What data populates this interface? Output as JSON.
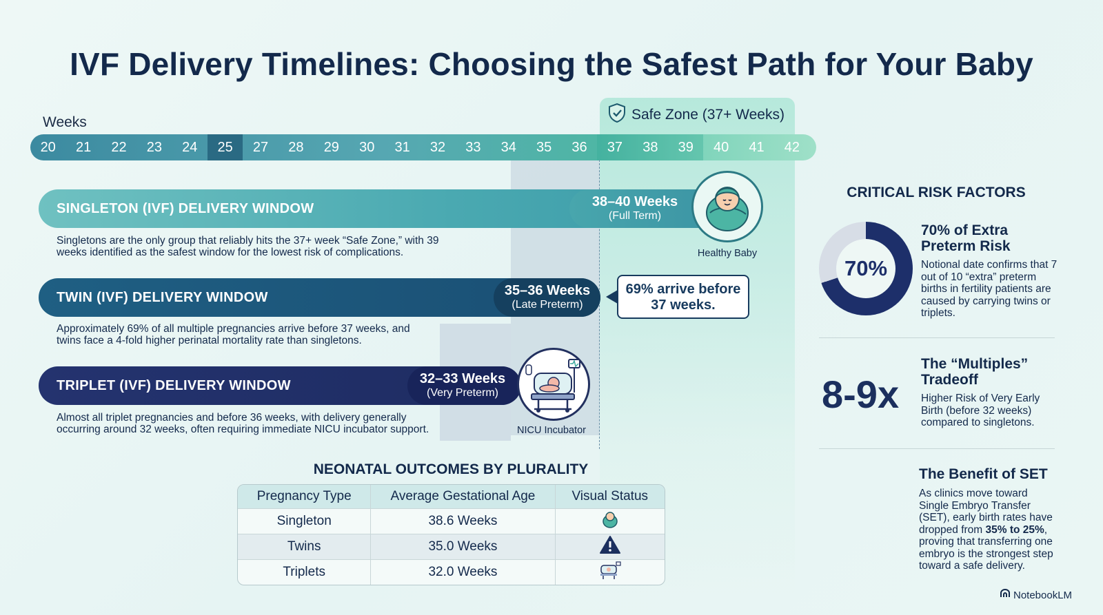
{
  "title": "IVF Delivery Timelines: Choosing the Safest Path for Your Baby",
  "timeline": {
    "label": "Weeks",
    "weeks": [
      "20",
      "21",
      "22",
      "23",
      "24",
      "25",
      "27",
      "28",
      "29",
      "30",
      "31",
      "32",
      "33",
      "34",
      "35",
      "36",
      "37",
      "38",
      "39",
      "40",
      "41",
      "42"
    ],
    "highlighted_week": "25",
    "safe_zone_label": "Safe Zone (37+ Weeks)"
  },
  "windows": [
    {
      "label": "SINGLETON (IVF) DELIVERY WINDOW",
      "weeks": "38–40 Weeks",
      "status": "(Full Term)",
      "description": "Singletons are the only group that reliably hits the 37+ week “Safe Zone,” with 39 weeks identified as the safest window for the lowest risk of complications.",
      "icon_caption": "Healthy Baby"
    },
    {
      "label": "TWIN (IVF) DELIVERY WINDOW",
      "weeks": "35–36 Weeks",
      "status": "(Late Preterm)",
      "description": "Approximately 69% of all multiple pregnancies arrive before 37 weeks, and twins face a 4-fold higher perinatal mortality rate than singletons.",
      "callout": "69% arrive before 37 weeks."
    },
    {
      "label": "TRIPLET (IVF) DELIVERY WINDOW",
      "weeks": "32–33 Weeks",
      "status": "(Very Preterm)",
      "description": "Almost all triplet pregnancies and before 36 weeks, with delivery generally occurring around 32 weeks, often requiring immediate NICU incubator support.",
      "icon_caption": "NICU Incubator"
    }
  ],
  "risk_factors": {
    "title": "CRITICAL RISK FACTORS",
    "donut_value": "70%",
    "donut_fraction": 0.7,
    "items": [
      {
        "heading": "70% of Extra Preterm Risk",
        "body": "Notional date confirms that 7 out of 10 “extra” preterm births in fertility patients are caused by carrying twins or triplets."
      },
      {
        "stat": "8-9x",
        "heading": "The “Multiples” Tradeoff",
        "body": "Higher Risk of Very Early Birth (before 32 weeks) compared to singletons."
      },
      {
        "heading": "The Benefit of SET",
        "body_pre": "As clinics move toward Single Embryo Transfer (SET), early birth rates have dropped from ",
        "body_bold": "35% to 25%",
        "body_post": ", proving that transferring one embryo is the strongest step toward a safe delivery."
      }
    ]
  },
  "outcomes_table": {
    "title": "NEONATAL OUTCOMES BY PLURALITY",
    "headers": [
      "Pregnancy Type",
      "Average Gestational Age",
      "Visual Status"
    ],
    "rows": [
      {
        "type": "Singleton",
        "age": "38.6 Weeks",
        "icon": "baby-icon"
      },
      {
        "type": "Twins",
        "age": "35.0 Weeks",
        "icon": "warning-icon"
      },
      {
        "type": "Triplets",
        "age": "32.0 Weeks",
        "icon": "incubator-icon"
      }
    ]
  },
  "brand": "NotebookLM",
  "colors": {
    "navy": "#13294b",
    "teal": "#4aa9b1",
    "twin": "#1a4f74",
    "triplet": "#1e2c62",
    "safe": "#b4e8da"
  }
}
